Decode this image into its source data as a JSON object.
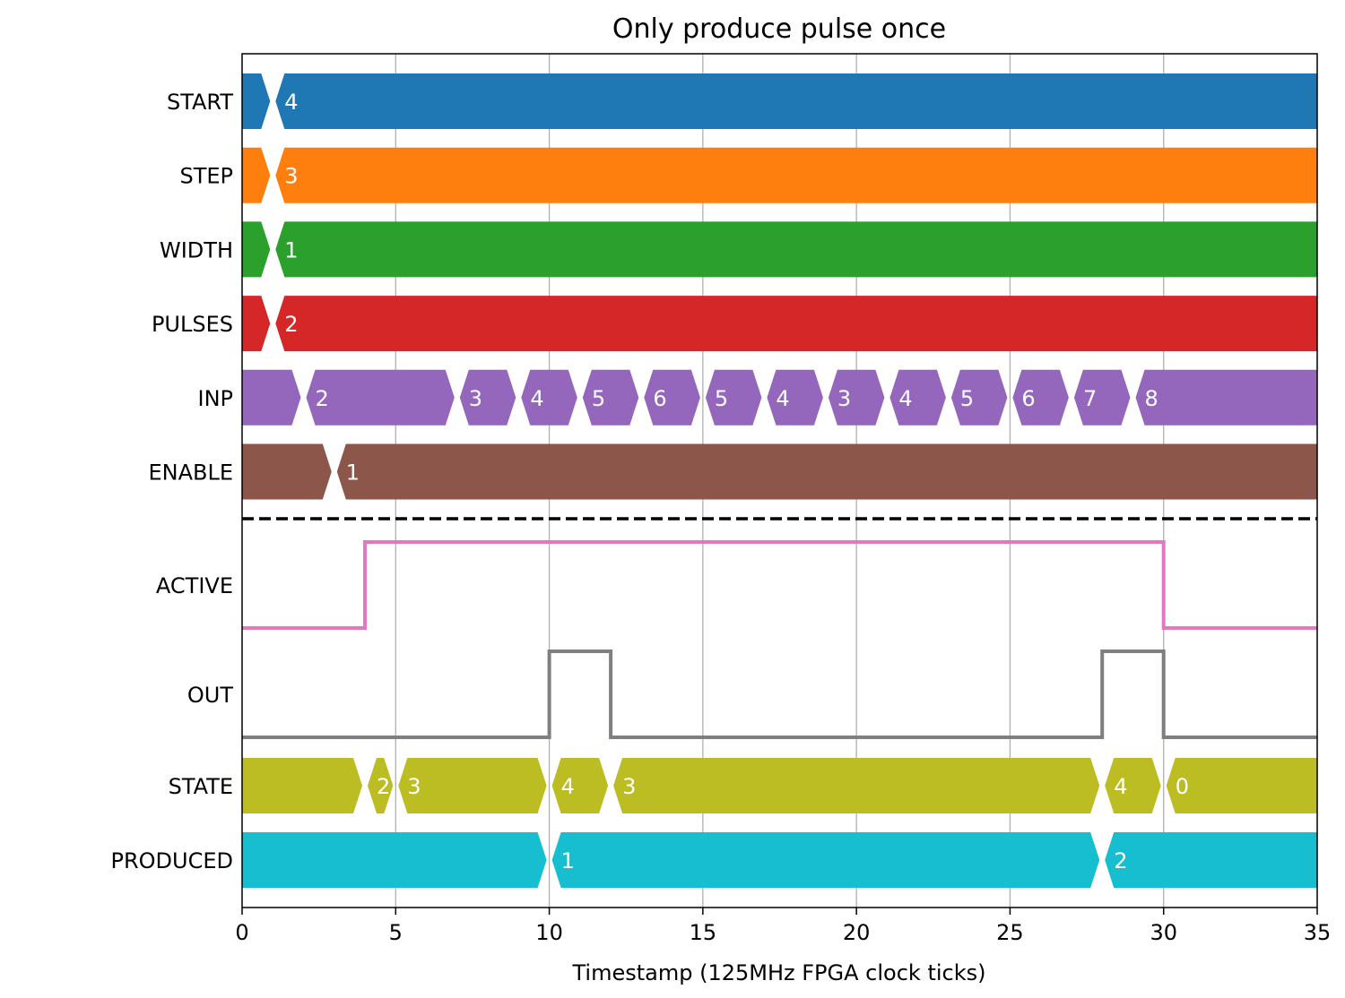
{
  "chart_data": {
    "type": "timing-diagram",
    "title": "Only produce pulse once",
    "xlabel": "Timestamp (125MHz FPGA clock ticks)",
    "xlim": [
      0,
      35
    ],
    "xticks": [
      0,
      5,
      10,
      15,
      20,
      25,
      30,
      35
    ],
    "grid": "vertical",
    "bus_signals_top": [
      {
        "name": "START",
        "color": "#1f77b4",
        "changes": [
          {
            "t": 1,
            "value": "4"
          }
        ]
      },
      {
        "name": "STEP",
        "color": "#ff7f0e",
        "changes": [
          {
            "t": 1,
            "value": "3"
          }
        ]
      },
      {
        "name": "WIDTH",
        "color": "#2ca02c",
        "changes": [
          {
            "t": 1,
            "value": "1"
          }
        ]
      },
      {
        "name": "PULSES",
        "color": "#d62728",
        "changes": [
          {
            "t": 1,
            "value": "2"
          }
        ]
      },
      {
        "name": "INP",
        "color": "#9467bd",
        "changes": [
          {
            "t": 2,
            "value": "2"
          },
          {
            "t": 7,
            "value": "3"
          },
          {
            "t": 9,
            "value": "4"
          },
          {
            "t": 11,
            "value": "5"
          },
          {
            "t": 13,
            "value": "6"
          },
          {
            "t": 15,
            "value": "5"
          },
          {
            "t": 17,
            "value": "4"
          },
          {
            "t": 19,
            "value": "3"
          },
          {
            "t": 21,
            "value": "4"
          },
          {
            "t": 23,
            "value": "5"
          },
          {
            "t": 25,
            "value": "6"
          },
          {
            "t": 27,
            "value": "7"
          },
          {
            "t": 29,
            "value": "8"
          }
        ]
      },
      {
        "name": "ENABLE",
        "color": "#8c564b",
        "changes": [
          {
            "t": 3,
            "value": "1"
          }
        ]
      }
    ],
    "bit_signals": [
      {
        "name": "ACTIVE",
        "color": "#e377c2",
        "steps": [
          [
            0,
            0
          ],
          [
            4,
            1
          ],
          [
            30,
            0
          ],
          [
            35,
            0
          ]
        ]
      },
      {
        "name": "OUT",
        "color": "#7f7f7f",
        "steps": [
          [
            0,
            0
          ],
          [
            10,
            1
          ],
          [
            12,
            0
          ],
          [
            28,
            1
          ],
          [
            30,
            0
          ],
          [
            35,
            0
          ]
        ]
      }
    ],
    "bus_signals_bottom": [
      {
        "name": "STATE",
        "color": "#bcbd22",
        "changes": [
          {
            "t": 4,
            "value": "2"
          },
          {
            "t": 5,
            "value": "3"
          },
          {
            "t": 10,
            "value": "4"
          },
          {
            "t": 12,
            "value": "3"
          },
          {
            "t": 28,
            "value": "4"
          },
          {
            "t": 30,
            "value": "0"
          }
        ]
      },
      {
        "name": "PRODUCED",
        "color": "#17becf",
        "changes": [
          {
            "t": 10,
            "value": "1"
          },
          {
            "t": 28,
            "value": "2"
          }
        ]
      }
    ]
  }
}
